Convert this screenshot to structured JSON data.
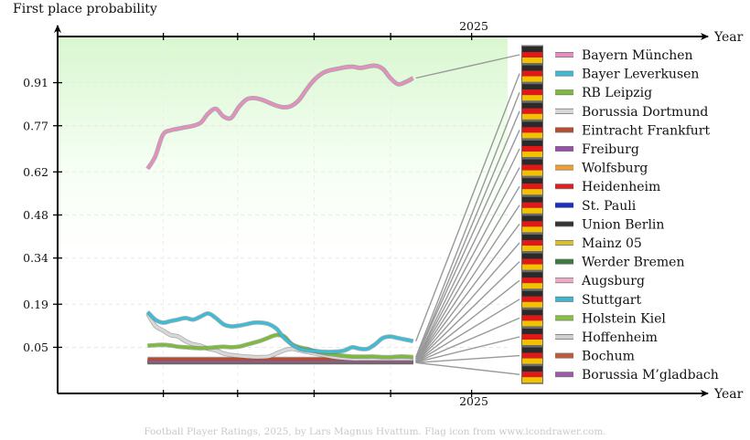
{
  "chart_data": {
    "type": "line",
    "ylabel": "First place probability",
    "xlabel": "Year",
    "x_tick_label": "2025",
    "yticks": [
      "0.05",
      "0.19",
      "0.34",
      "0.48",
      "0.62",
      "0.77",
      "0.91"
    ],
    "ylim": [
      -0.1,
      1.06
    ],
    "xlim": [
      0,
      100
    ],
    "x_start": 20,
    "x_end": 79,
    "grid": true,
    "legend_position": "right",
    "credit": "Football Player Ratings, 2025, by Lars Magnus Hvattum. Flag icon from www.icondrawer.com.",
    "series": [
      {
        "name": "Bayern München",
        "color": "#e58ec0",
        "width": 3.2,
        "values": [
          0.63,
          0.67,
          0.74,
          0.755,
          0.76,
          0.765,
          0.77,
          0.78,
          0.81,
          0.825,
          0.8,
          0.795,
          0.83,
          0.855,
          0.86,
          0.855,
          0.845,
          0.835,
          0.83,
          0.835,
          0.855,
          0.89,
          0.92,
          0.94,
          0.95,
          0.955,
          0.96,
          0.962,
          0.958,
          0.962,
          0.965,
          0.955,
          0.925,
          0.905,
          0.912,
          0.925
        ]
      },
      {
        "name": "Bayer Leverkusen",
        "color": "#3cbcd6",
        "width": 3.2,
        "values": [
          0.165,
          0.14,
          0.13,
          0.135,
          0.14,
          0.145,
          0.14,
          0.15,
          0.16,
          0.145,
          0.125,
          0.118,
          0.12,
          0.125,
          0.13,
          0.13,
          0.125,
          0.11,
          0.08,
          0.06,
          0.045,
          0.04,
          0.038,
          0.036,
          0.035,
          0.036,
          0.04,
          0.05,
          0.045,
          0.045,
          0.06,
          0.08,
          0.085,
          0.08,
          0.075,
          0.07
        ]
      },
      {
        "name": "RB Leipzig",
        "color": "#7dbb3a",
        "width": 3.2,
        "values": [
          0.055,
          0.057,
          0.058,
          0.056,
          0.052,
          0.05,
          0.048,
          0.047,
          0.048,
          0.05,
          0.052,
          0.05,
          0.052,
          0.058,
          0.065,
          0.072,
          0.082,
          0.09,
          0.085,
          0.06,
          0.05,
          0.045,
          0.038,
          0.032,
          0.028,
          0.025,
          0.022,
          0.02,
          0.02,
          0.02,
          0.02,
          0.018,
          0.018,
          0.02,
          0.02,
          0.018
        ]
      },
      {
        "name": "Borussia Dortmund",
        "color": "#d8d8d8",
        "width": 3.2,
        "values": [
          0.16,
          0.12,
          0.105,
          0.09,
          0.085,
          0.07,
          0.06,
          0.055,
          0.045,
          0.04,
          0.03,
          0.025,
          0.022,
          0.02,
          0.018,
          0.018,
          0.02,
          0.03,
          0.04,
          0.045,
          0.04,
          0.035,
          0.03,
          0.025,
          0.02,
          0.016,
          0.014,
          0.012,
          0.012,
          0.012,
          0.012,
          0.012,
          0.012,
          0.012,
          0.012,
          0.012
        ]
      },
      {
        "name": "Eintracht Frankfurt",
        "color": "#b84a2e",
        "width": 3.2,
        "values": [
          0.012,
          0.012,
          0.012,
          0.012,
          0.012,
          0.012,
          0.012,
          0.012,
          0.012,
          0.012,
          0.012,
          0.012,
          0.012,
          0.012,
          0.012,
          0.012,
          0.012,
          0.012,
          0.012,
          0.012,
          0.012,
          0.012,
          0.012,
          0.012,
          0.012,
          0.012,
          0.012,
          0.012,
          0.012,
          0.012,
          0.012,
          0.012,
          0.012,
          0.012,
          0.012,
          0.012
        ]
      },
      {
        "name": "Freiburg",
        "color": "#9a50a8",
        "width": 2.4,
        "values": [
          0.006,
          0.006,
          0.006,
          0.006,
          0.006,
          0.006,
          0.006,
          0.006,
          0.006,
          0.006,
          0.006,
          0.006,
          0.006,
          0.006,
          0.006,
          0.006,
          0.006,
          0.006,
          0.006,
          0.006,
          0.006,
          0.006,
          0.006,
          0.006,
          0.006,
          0.006,
          0.006,
          0.006,
          0.006,
          0.006,
          0.006,
          0.006,
          0.006,
          0.006,
          0.006,
          0.006
        ]
      },
      {
        "name": "Wolfsburg",
        "color": "#f0a030",
        "width": 2.4,
        "values": [
          0.005,
          0.005,
          0.005,
          0.005,
          0.005,
          0.005,
          0.005,
          0.005,
          0.005,
          0.005,
          0.005,
          0.005,
          0.005,
          0.005,
          0.005,
          0.005,
          0.005,
          0.005,
          0.005,
          0.005,
          0.005,
          0.005,
          0.005,
          0.005,
          0.005,
          0.005,
          0.005,
          0.005,
          0.005,
          0.005,
          0.005,
          0.005,
          0.005,
          0.005,
          0.005,
          0.005
        ]
      },
      {
        "name": "Heidenheim",
        "color": "#e02020",
        "width": 2.4,
        "values": [
          0.004,
          0.004,
          0.004,
          0.004,
          0.004,
          0.004,
          0.004,
          0.004,
          0.004,
          0.004,
          0.004,
          0.004,
          0.004,
          0.004,
          0.004,
          0.004,
          0.004,
          0.004,
          0.004,
          0.004,
          0.004,
          0.004,
          0.004,
          0.004,
          0.004,
          0.004,
          0.004,
          0.004,
          0.004,
          0.004,
          0.004,
          0.004,
          0.004,
          0.004,
          0.004,
          0.004
        ]
      },
      {
        "name": "St. Pauli",
        "color": "#1a2ec8",
        "width": 2.4,
        "values": [
          0.003,
          0.003,
          0.003,
          0.003,
          0.003,
          0.003,
          0.003,
          0.003,
          0.003,
          0.003,
          0.003,
          0.003,
          0.003,
          0.003,
          0.003,
          0.003,
          0.003,
          0.003,
          0.003,
          0.003,
          0.003,
          0.003,
          0.003,
          0.003,
          0.003,
          0.003,
          0.003,
          0.003,
          0.003,
          0.003,
          0.003,
          0.003,
          0.003,
          0.003,
          0.003,
          0.003
        ]
      },
      {
        "name": "Union Berlin",
        "color": "#333333",
        "width": 2.4,
        "values": [
          0.003,
          0.003,
          0.003,
          0.003,
          0.003,
          0.003,
          0.003,
          0.003,
          0.003,
          0.003,
          0.003,
          0.003,
          0.003,
          0.003,
          0.003,
          0.003,
          0.003,
          0.003,
          0.003,
          0.003,
          0.003,
          0.003,
          0.003,
          0.003,
          0.003,
          0.003,
          0.003,
          0.003,
          0.003,
          0.003,
          0.003,
          0.003,
          0.003,
          0.003,
          0.003,
          0.003
        ]
      },
      {
        "name": "Mainz 05",
        "color": "#d8c030",
        "width": 2.4,
        "values": [
          0.002,
          0.002,
          0.002,
          0.002,
          0.002,
          0.002,
          0.002,
          0.002,
          0.002,
          0.002,
          0.002,
          0.002,
          0.002,
          0.002,
          0.002,
          0.002,
          0.002,
          0.002,
          0.002,
          0.002,
          0.002,
          0.002,
          0.002,
          0.002,
          0.002,
          0.002,
          0.002,
          0.002,
          0.002,
          0.002,
          0.002,
          0.002,
          0.002,
          0.002,
          0.002,
          0.002
        ]
      },
      {
        "name": "Werder Bremen",
        "color": "#3a7a3a",
        "width": 2.4,
        "values": [
          0.002,
          0.002,
          0.002,
          0.002,
          0.002,
          0.002,
          0.002,
          0.002,
          0.002,
          0.002,
          0.002,
          0.002,
          0.002,
          0.002,
          0.002,
          0.002,
          0.002,
          0.002,
          0.002,
          0.002,
          0.002,
          0.002,
          0.002,
          0.002,
          0.002,
          0.002,
          0.002,
          0.002,
          0.002,
          0.002,
          0.002,
          0.002,
          0.002,
          0.002,
          0.002,
          0.002
        ]
      },
      {
        "name": "Augsburg",
        "color": "#f0a8c8",
        "width": 2.4,
        "values": [
          0.001,
          0.001,
          0.001,
          0.001,
          0.001,
          0.001,
          0.001,
          0.001,
          0.001,
          0.001,
          0.001,
          0.001,
          0.001,
          0.001,
          0.001,
          0.001,
          0.001,
          0.001,
          0.001,
          0.001,
          0.001,
          0.001,
          0.001,
          0.001,
          0.001,
          0.001,
          0.001,
          0.001,
          0.001,
          0.001,
          0.001,
          0.001,
          0.001,
          0.001,
          0.001,
          0.001
        ]
      },
      {
        "name": "Stuttgart",
        "color": "#40b4d0",
        "width": 2.4,
        "values": [
          0.001,
          0.001,
          0.001,
          0.001,
          0.001,
          0.001,
          0.001,
          0.001,
          0.001,
          0.001,
          0.001,
          0.001,
          0.001,
          0.001,
          0.001,
          0.001,
          0.001,
          0.001,
          0.001,
          0.001,
          0.001,
          0.001,
          0.001,
          0.001,
          0.001,
          0.001,
          0.001,
          0.001,
          0.001,
          0.001,
          0.001,
          0.001,
          0.001,
          0.001,
          0.001,
          0.001
        ]
      },
      {
        "name": "Holstein Kiel",
        "color": "#88c040",
        "width": 2.4,
        "values": [
          0.001,
          0.001,
          0.001,
          0.001,
          0.001,
          0.001,
          0.001,
          0.001,
          0.001,
          0.001,
          0.001,
          0.001,
          0.001,
          0.001,
          0.001,
          0.001,
          0.001,
          0.001,
          0.001,
          0.001,
          0.001,
          0.001,
          0.001,
          0.001,
          0.001,
          0.001,
          0.001,
          0.001,
          0.001,
          0.001,
          0.001,
          0.001,
          0.001,
          0.001,
          0.001,
          0.001
        ]
      },
      {
        "name": "Hoffenheim",
        "color": "#d0d0d0",
        "width": 2.4,
        "values": [
          0.001,
          0.001,
          0.001,
          0.001,
          0.001,
          0.001,
          0.001,
          0.001,
          0.001,
          0.001,
          0.001,
          0.001,
          0.001,
          0.001,
          0.001,
          0.001,
          0.001,
          0.001,
          0.001,
          0.001,
          0.001,
          0.001,
          0.001,
          0.001,
          0.001,
          0.001,
          0.001,
          0.001,
          0.001,
          0.001,
          0.001,
          0.001,
          0.001,
          0.001,
          0.001,
          0.001
        ]
      },
      {
        "name": "Bochum",
        "color": "#c05a38",
        "width": 2.4,
        "values": [
          0.0,
          0.0,
          0.0,
          0.0,
          0.0,
          0.0,
          0.0,
          0.0,
          0.0,
          0.0,
          0.0,
          0.0,
          0.0,
          0.0,
          0.0,
          0.0,
          0.0,
          0.0,
          0.0,
          0.0,
          0.0,
          0.0,
          0.0,
          0.0,
          0.0,
          0.0,
          0.0,
          0.0,
          0.0,
          0.0,
          0.0,
          0.0,
          0.0,
          0.0,
          0.0,
          0.0
        ]
      },
      {
        "name": "Borussia M’gladbach",
        "color": "#9c5aa8",
        "width": 2.4,
        "values": [
          0.0,
          0.0,
          0.0,
          0.0,
          0.0,
          0.0,
          0.0,
          0.0,
          0.0,
          0.0,
          0.0,
          0.0,
          0.0,
          0.0,
          0.0,
          0.0,
          0.0,
          0.0,
          0.0,
          0.0,
          0.0,
          0.0,
          0.0,
          0.0,
          0.0,
          0.0,
          0.0,
          0.0,
          0.0,
          0.0,
          0.0,
          0.0,
          0.0,
          0.0,
          0.0,
          0.0
        ]
      }
    ]
  }
}
